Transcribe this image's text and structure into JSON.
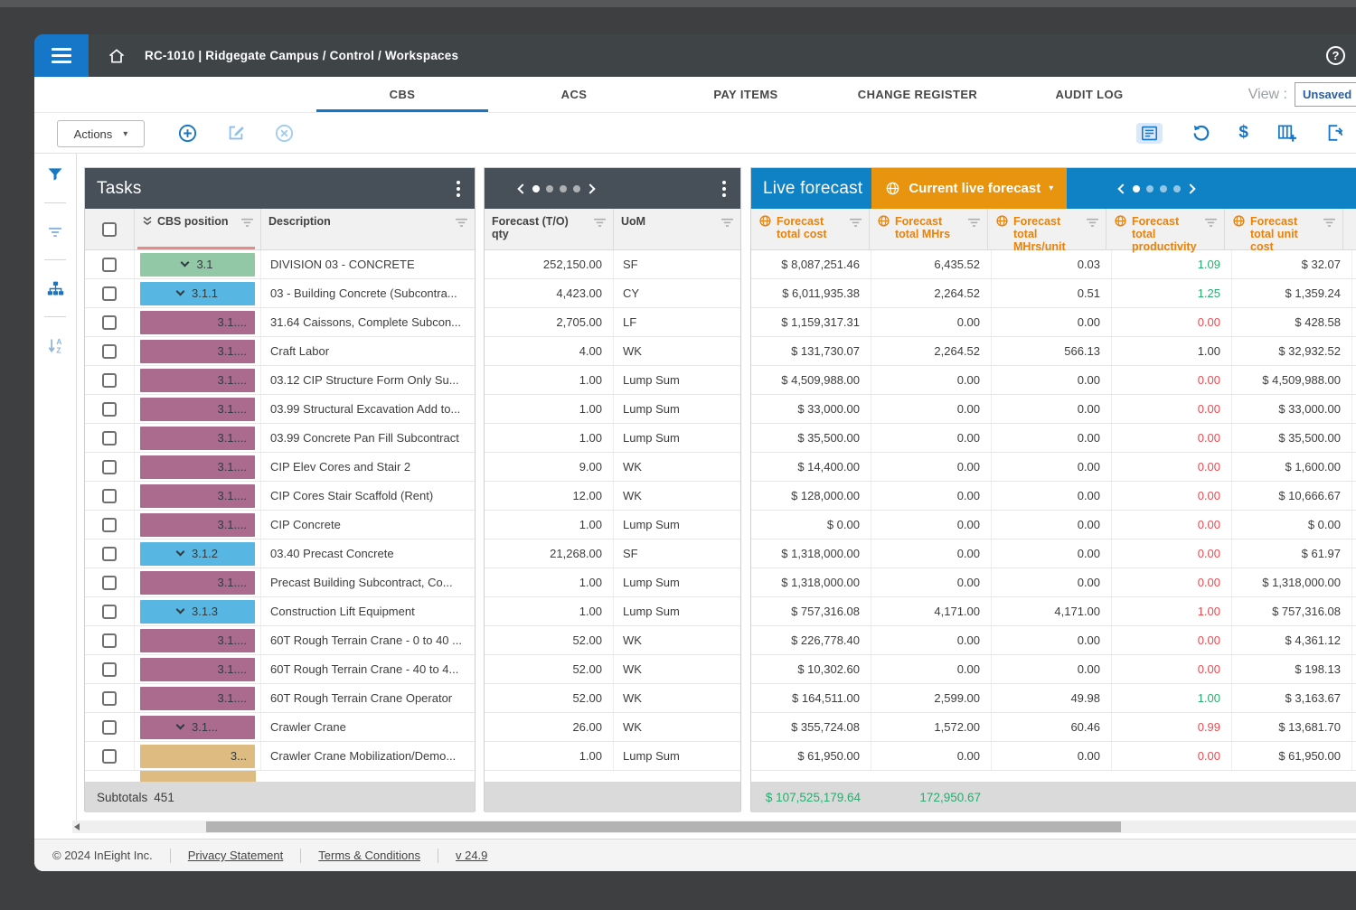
{
  "topbar": {
    "breadcrumb": "RC-1010 | Ridgegate Campus  /  Control  /  Workspaces"
  },
  "tabs": [
    "CBS",
    "ACS",
    "PAY ITEMS",
    "CHANGE REGISTER",
    "AUDIT LOG"
  ],
  "active_tab": 0,
  "view": {
    "label": "View :",
    "value": "Unsaved"
  },
  "toolbar": {
    "actions_label": "Actions"
  },
  "tasks": {
    "title": "Tasks",
    "columns": {
      "cbs": "CBS position",
      "description": "Description"
    },
    "subtotals_label": "Subtotals",
    "subtotals_count": "451"
  },
  "mid": {
    "columns": {
      "qty": "Forecast (T/O) qty",
      "uom": "UoM"
    }
  },
  "live": {
    "title": "Live forecast",
    "selector_label": "Current live forecast",
    "columns": [
      "Forecast total cost",
      "Forecast total MHrs",
      "Forecast total MHrs/unit",
      "Forecast total productivity",
      "Forecast total unit cost"
    ],
    "subtotal_cost": "$ 107,525,179.64",
    "subtotal_mhrs": "172,950.67"
  },
  "rows": [
    {
      "cbs": "3.1",
      "chip": "green",
      "parent": true,
      "desc": "DIVISION 03 - CONCRETE",
      "qty": "252,150.00",
      "uom": "SF",
      "cost": "$ 8,087,251.46",
      "mhrs": "6,435.52",
      "mhrs_per_unit": "0.03",
      "productivity": "1.09",
      "productivity_color": "green",
      "unit_cost": "$ 32.07"
    },
    {
      "cbs": "3.1.1",
      "chip": "blue",
      "parent": true,
      "desc": "03 - Building Concrete (Subcontra...",
      "qty": "4,423.00",
      "uom": "CY",
      "cost": "$ 6,011,935.38",
      "mhrs": "2,264.52",
      "mhrs_per_unit": "0.51",
      "productivity": "1.25",
      "productivity_color": "green",
      "unit_cost": "$ 1,359.24"
    },
    {
      "cbs": "3.1....",
      "chip": "mauve",
      "parent": false,
      "desc": "31.64 Caissons, Complete Subcon...",
      "qty": "2,705.00",
      "uom": "LF",
      "cost": "$ 1,159,317.31",
      "mhrs": "0.00",
      "mhrs_per_unit": "0.00",
      "productivity": "0.00",
      "productivity_color": "red",
      "unit_cost": "$ 428.58"
    },
    {
      "cbs": "3.1....",
      "chip": "mauve",
      "parent": false,
      "desc": "Craft Labor",
      "qty": "4.00",
      "uom": "WK",
      "cost": "$ 131,730.07",
      "mhrs": "2,264.52",
      "mhrs_per_unit": "566.13",
      "productivity": "1.00",
      "productivity_color": "dark",
      "unit_cost": "$ 32,932.52"
    },
    {
      "cbs": "3.1....",
      "chip": "mauve",
      "parent": false,
      "desc": "03.12 CIP Structure Form Only Su...",
      "qty": "1.00",
      "uom": "Lump Sum",
      "cost": "$ 4,509,988.00",
      "mhrs": "0.00",
      "mhrs_per_unit": "0.00",
      "productivity": "0.00",
      "productivity_color": "red",
      "unit_cost": "$ 4,509,988.00"
    },
    {
      "cbs": "3.1....",
      "chip": "mauve",
      "parent": false,
      "desc": "03.99 Structural Excavation Add to...",
      "qty": "1.00",
      "uom": "Lump Sum",
      "cost": "$ 33,000.00",
      "mhrs": "0.00",
      "mhrs_per_unit": "0.00",
      "productivity": "0.00",
      "productivity_color": "red",
      "unit_cost": "$ 33,000.00"
    },
    {
      "cbs": "3.1....",
      "chip": "mauve",
      "parent": false,
      "desc": "03.99 Concrete Pan Fill Subcontract",
      "qty": "1.00",
      "uom": "Lump Sum",
      "cost": "$ 35,500.00",
      "mhrs": "0.00",
      "mhrs_per_unit": "0.00",
      "productivity": "0.00",
      "productivity_color": "red",
      "unit_cost": "$ 35,500.00"
    },
    {
      "cbs": "3.1....",
      "chip": "mauve",
      "parent": false,
      "desc": "CIP Elev Cores and Stair 2",
      "qty": "9.00",
      "uom": "WK",
      "cost": "$ 14,400.00",
      "mhrs": "0.00",
      "mhrs_per_unit": "0.00",
      "productivity": "0.00",
      "productivity_color": "red",
      "unit_cost": "$ 1,600.00"
    },
    {
      "cbs": "3.1....",
      "chip": "mauve",
      "parent": false,
      "desc": "CIP Cores Stair Scaffold (Rent)",
      "qty": "12.00",
      "uom": "WK",
      "cost": "$ 128,000.00",
      "mhrs": "0.00",
      "mhrs_per_unit": "0.00",
      "productivity": "0.00",
      "productivity_color": "red",
      "unit_cost": "$ 10,666.67"
    },
    {
      "cbs": "3.1....",
      "chip": "mauve",
      "parent": false,
      "desc": "CIP Concrete",
      "qty": "1.00",
      "uom": "Lump Sum",
      "cost": "$ 0.00",
      "mhrs": "0.00",
      "mhrs_per_unit": "0.00",
      "productivity": "0.00",
      "productivity_color": "red",
      "unit_cost": "$ 0.00"
    },
    {
      "cbs": "3.1.2",
      "chip": "blue",
      "parent": true,
      "desc": "03.40 Precast Concrete",
      "qty": "21,268.00",
      "uom": "SF",
      "cost": "$ 1,318,000.00",
      "mhrs": "0.00",
      "mhrs_per_unit": "0.00",
      "productivity": "0.00",
      "productivity_color": "red",
      "unit_cost": "$ 61.97"
    },
    {
      "cbs": "3.1....",
      "chip": "mauve",
      "parent": false,
      "desc": "Precast Building Subcontract, Co...",
      "qty": "1.00",
      "uom": "Lump Sum",
      "cost": "$ 1,318,000.00",
      "mhrs": "0.00",
      "mhrs_per_unit": "0.00",
      "productivity": "0.00",
      "productivity_color": "red",
      "unit_cost": "$ 1,318,000.00"
    },
    {
      "cbs": "3.1.3",
      "chip": "blue",
      "parent": true,
      "desc": "Construction Lift Equipment",
      "qty": "1.00",
      "uom": "Lump Sum",
      "cost": "$ 757,316.08",
      "mhrs": "4,171.00",
      "mhrs_per_unit": "4,171.00",
      "productivity": "1.00",
      "productivity_color": "red",
      "unit_cost": "$ 757,316.08"
    },
    {
      "cbs": "3.1....",
      "chip": "mauve",
      "parent": false,
      "desc": "60T Rough Terrain Crane - 0 to 40 ...",
      "qty": "52.00",
      "uom": "WK",
      "cost": "$ 226,778.40",
      "mhrs": "0.00",
      "mhrs_per_unit": "0.00",
      "productivity": "0.00",
      "productivity_color": "red",
      "unit_cost": "$ 4,361.12"
    },
    {
      "cbs": "3.1....",
      "chip": "mauve",
      "parent": false,
      "desc": "60T Rough Terrain Crane - 40 to 4...",
      "qty": "52.00",
      "uom": "WK",
      "cost": "$ 10,302.60",
      "mhrs": "0.00",
      "mhrs_per_unit": "0.00",
      "productivity": "0.00",
      "productivity_color": "red",
      "unit_cost": "$ 198.13"
    },
    {
      "cbs": "3.1....",
      "chip": "mauve",
      "parent": false,
      "desc": "60T Rough Terrain Crane Operator",
      "qty": "52.00",
      "uom": "WK",
      "cost": "$ 164,511.00",
      "mhrs": "2,599.00",
      "mhrs_per_unit": "49.98",
      "productivity": "1.00",
      "productivity_color": "green",
      "unit_cost": "$ 3,163.67"
    },
    {
      "cbs": "3.1...",
      "chip": "mauve",
      "parent": true,
      "desc": "Crawler Crane",
      "qty": "26.00",
      "uom": "WK",
      "cost": "$ 355,724.08",
      "mhrs": "1,572.00",
      "mhrs_per_unit": "60.46",
      "productivity": "0.99",
      "productivity_color": "red",
      "unit_cost": "$ 13,681.70"
    },
    {
      "cbs": "3...",
      "chip": "tan",
      "parent": false,
      "desc": "Crawler Crane Mobilization/Demo...",
      "qty": "1.00",
      "uom": "Lump Sum",
      "cost": "$ 61,950.00",
      "mhrs": "0.00",
      "mhrs_per_unit": "0.00",
      "productivity": "0.00",
      "productivity_color": "red",
      "unit_cost": "$ 61,950.00"
    }
  ],
  "partial_row": {
    "chip": "tan"
  },
  "footer": {
    "copyright": "© 2024 InEight Inc.",
    "privacy": "Privacy Statement",
    "terms": "Terms & Conditions",
    "version": "v 24.9"
  },
  "icons": {
    "hamburger": "menu",
    "home": "house",
    "help": "?",
    "add": "plus-circle",
    "edit": "pencil-square",
    "remove": "x-circle",
    "form": "list-rect",
    "undo": "counterclockwise-arrow",
    "currency": "$",
    "add-column": "columns-plus",
    "export": "page-arrow",
    "rail": [
      "filter-funnel",
      "filter-lines",
      "hierarchy",
      "sort-az"
    ],
    "forecast_column": "globe",
    "column_filter": "filter-lines"
  },
  "colors": {
    "accent_blue": "#1677c8",
    "live_header_blue": "#0e82c4",
    "selector_orange": "#e8940e",
    "forecast_header_orange": "#e8820a",
    "panel_header_slate": "#475058",
    "chip_green": "#92c8a6",
    "chip_blue": "#57b6e2",
    "chip_mauve": "#aa6b8f",
    "chip_tan": "#debb80",
    "value_green": "#27ad6e",
    "value_red": "#ee4b4e",
    "cbs_sort_bar_red": "#e98a8a"
  }
}
